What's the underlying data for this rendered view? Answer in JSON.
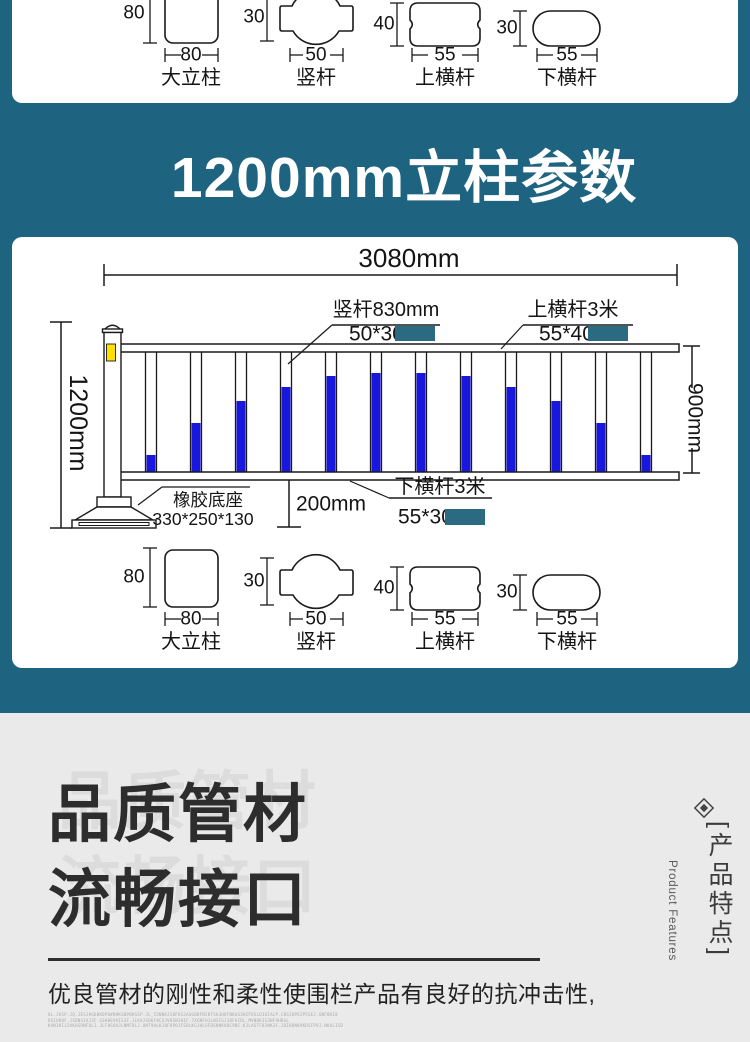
{
  "colors": {
    "teal_bg": "#1e6380",
    "panel_white": "#ffffff",
    "section_gray": "#eaeaea",
    "bar_blue": "#1717dd",
    "sticker_yellow": "#ffdf00",
    "redact_teal": "#2a6b82",
    "line_black": "#1a1a1a"
  },
  "title_band": {
    "text": "1200mm立柱参数"
  },
  "profiles": [
    {
      "name": "大立柱",
      "h": "80",
      "w": "80"
    },
    {
      "name": "竖杆",
      "h": "30",
      "w": "50"
    },
    {
      "name": "上横杆",
      "h": "40",
      "w": "55"
    },
    {
      "name": "下横杆",
      "h": "30",
      "w": "55"
    }
  ],
  "diagram": {
    "overall_width_label": "3080mm",
    "overall_height_label": "1200mm",
    "rail_height_label": "900mm",
    "clearance_label": "200mm",
    "callout_vertical_bar_line1": "竖杆830mm",
    "callout_vertical_bar_line2": "50*30",
    "callout_top_rail_line1": "上横杆3米",
    "callout_top_rail_line2": "55*40",
    "callout_bottom_rail_line1": "下横杆3米",
    "callout_bottom_rail_line2": "55*30",
    "callout_base_line1": "橡胶底座",
    "callout_base_line2": "330*250*130",
    "bar_fill_heights": [
      18,
      50,
      72,
      86,
      97,
      100,
      100,
      97,
      86,
      72,
      50,
      18
    ]
  },
  "features": {
    "heading_line1": "品质管材",
    "heading_line2": "流畅接口",
    "body_text": "优良管材的刚性和柔性使围栏产品有良好的抗冲击性,",
    "side_label_cn": "[产品特点]",
    "side_label_en": "Product Features",
    "fine_print": [
      "OL.JKSP.JQ.JESJ#GO8KDPO#NHKSBPBKSSP.JL_53NNKJS8FKS3AUGBDFNJKFSA3HUFNKUS3HIFOSLDIUIALP.CBSJ8POIP5SEJ.GNF8KI8",
      "OSIUKOF.JSDNSIAJ2F.GSH8EVKIS3F.JLKAJSD6F8CXJV8SN38IF.7XGNFHJLNSFGJ38FKIDL.MVN8KIS3NF9HDGL",
      "KVN3KIJ2VKHSDNF8LI.JLF8SOAJLNMFDLJ.8NT9HLKJ8F8POIFSDLKGJHLSFDSHNKUBC9NI.KJLASTF83NK3F.JOI8BN89KDSFPVJ.NKALISD"
    ]
  }
}
